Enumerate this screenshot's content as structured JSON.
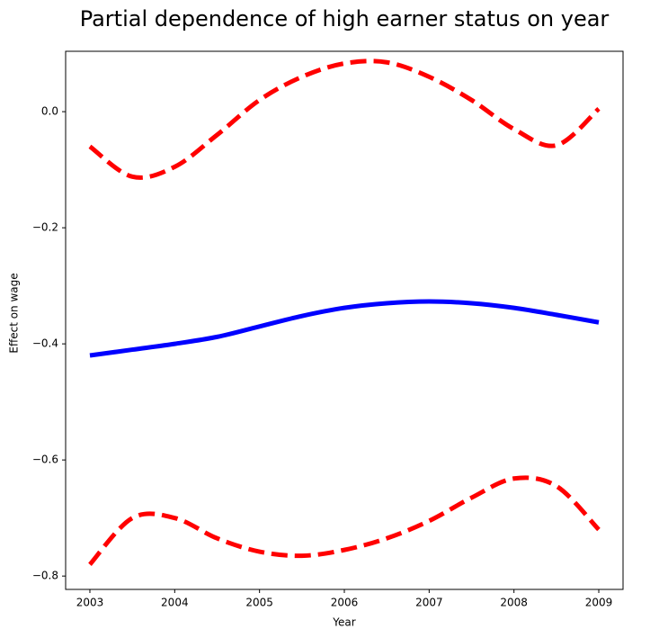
{
  "chart_data": {
    "type": "line",
    "title": "Partial dependence of high earner status on year",
    "x_label": "Year",
    "y_label": "Effect on wage",
    "x": [
      2003,
      2003.5,
      2004,
      2004.5,
      2005,
      2005.5,
      2006,
      2006.5,
      2007,
      2007.5,
      2008,
      2008.5,
      2009
    ],
    "series": [
      {
        "color": "#0000ff",
        "linestyle": "solid",
        "values": [
          -0.42,
          -0.41,
          -0.4,
          -0.388,
          -0.37,
          -0.352,
          -0.338,
          -0.33,
          -0.327,
          -0.33,
          -0.338,
          -0.35,
          -0.363
        ]
      },
      {
        "color": "#ff0000",
        "linestyle": "dashed",
        "values": [
          -0.06,
          -0.112,
          -0.095,
          -0.04,
          0.02,
          0.06,
          0.083,
          0.085,
          0.06,
          0.02,
          -0.03,
          -0.058,
          0.005
        ]
      },
      {
        "color": "#ff0000",
        "linestyle": "dashed",
        "values": [
          -0.78,
          -0.7,
          -0.7,
          -0.735,
          -0.758,
          -0.765,
          -0.755,
          -0.735,
          -0.705,
          -0.665,
          -0.632,
          -0.645,
          -0.72
        ]
      }
    ],
    "xlim": [
      2002.714,
      2009.286
    ],
    "ylim": [
      -0.823,
      0.104
    ],
    "xticks": [
      2003,
      2004,
      2005,
      2006,
      2007,
      2008,
      2009
    ],
    "yticks": [
      {
        "value": -0.8,
        "label": "−0.8"
      },
      {
        "value": -0.6,
        "label": "−0.6"
      },
      {
        "value": -0.4,
        "label": "−0.4"
      },
      {
        "value": -0.2,
        "label": "−0.2"
      },
      {
        "value": 0,
        "label": "0.0"
      }
    ],
    "grid": false
  }
}
